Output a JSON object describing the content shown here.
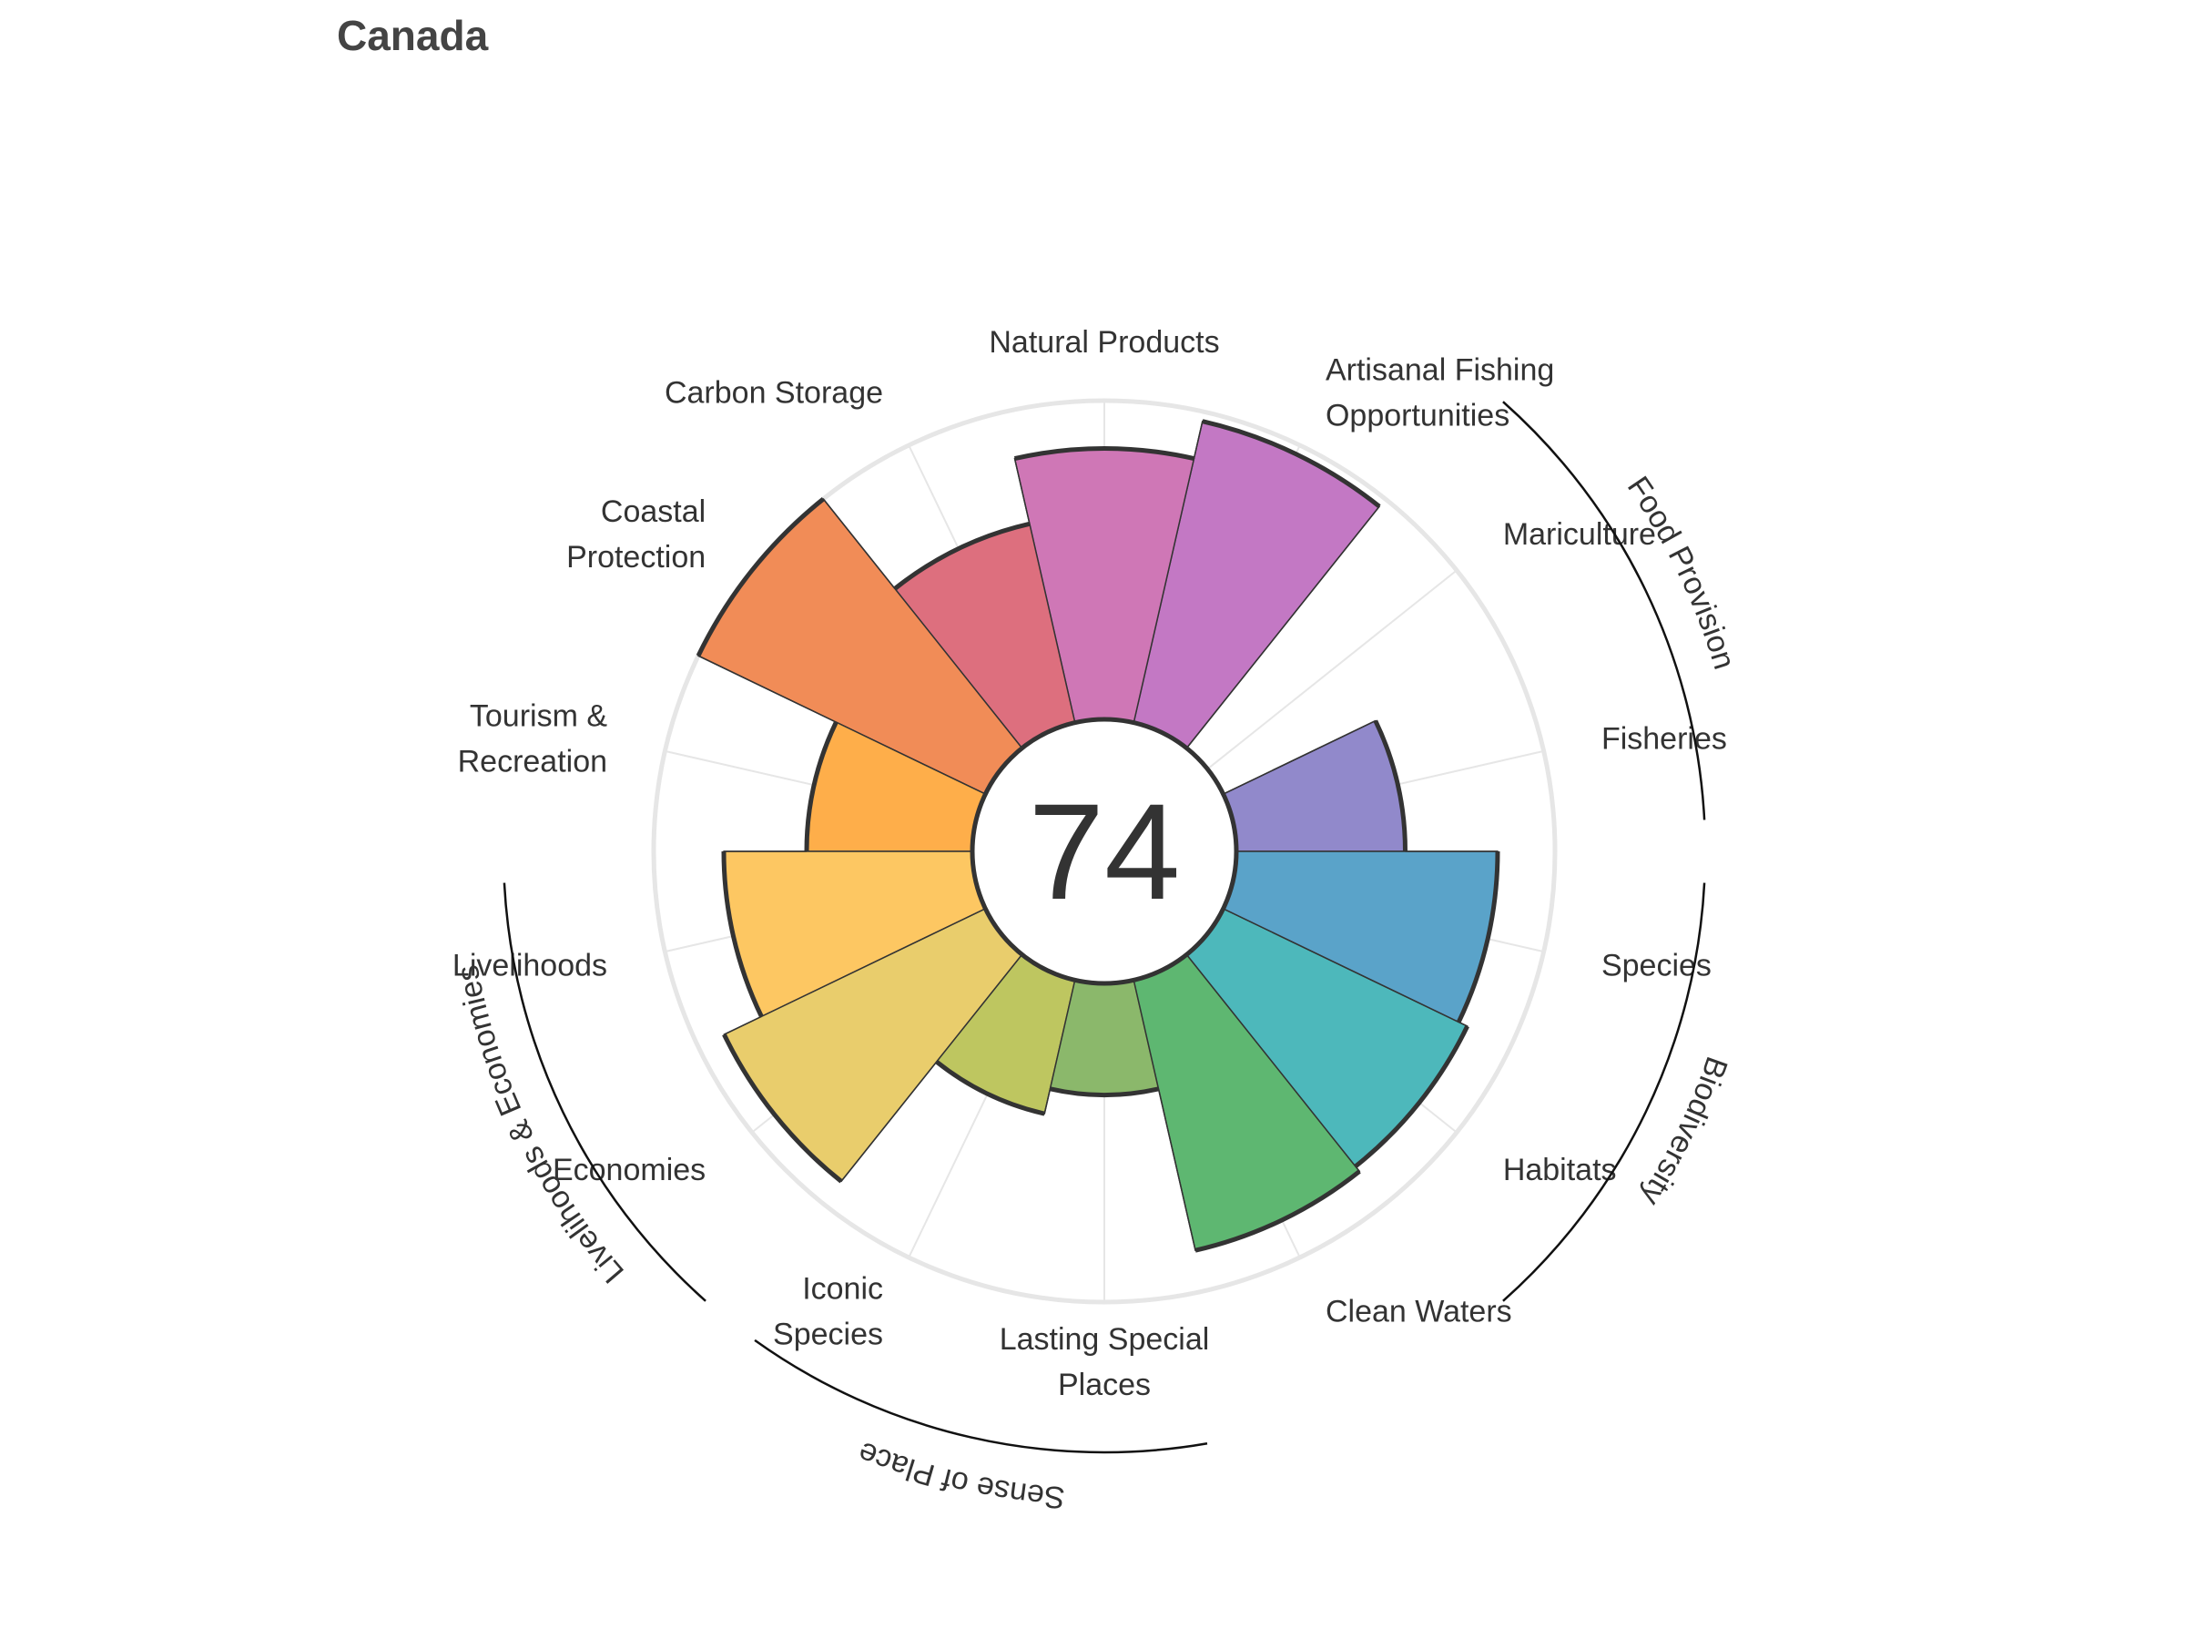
{
  "title": "Canada",
  "chart_data": {
    "type": "bar",
    "subtype": "polar-flower",
    "title": "Canada",
    "center_value": "74",
    "rlim": [
      0,
      100
    ],
    "grid": true,
    "categories": [
      "Fisheries",
      "Mariculture",
      "Artisanal Fishing Opportunities",
      "Natural Products",
      "Carbon Storage",
      "Coastal Protection",
      "Tourism & Recreation",
      "Livelihoods",
      "Economies",
      "Iconic Species",
      "Lasting Special Places",
      "Clean Waters",
      "Habitats",
      "Species"
    ],
    "label_lines": [
      [
        "Fisheries"
      ],
      [
        "Mariculture"
      ],
      [
        "Artisanal Fishing",
        "Opportunities"
      ],
      [
        "Natural Products"
      ],
      [
        "Carbon Storage"
      ],
      [
        "Coastal",
        "Protection"
      ],
      [
        "Tourism &",
        "Recreation"
      ],
      [
        "Livelihoods"
      ],
      [
        "Economies"
      ],
      [
        "Iconic",
        "Species"
      ],
      [
        "Lasting Special",
        "Places"
      ],
      [
        "Clean Waters"
      ],
      [
        "Habitats"
      ],
      [
        "Species"
      ]
    ],
    "values": [
      53,
      0,
      97,
      85,
      64,
      100,
      52,
      78,
      91,
      43,
      35,
      87,
      85,
      82
    ],
    "weights": [
      1,
      1,
      1,
      1,
      1,
      1,
      1,
      1,
      1,
      1,
      1,
      1,
      1,
      1
    ],
    "colors": [
      "#9189CB",
      "#B57FCD",
      "#C378C4",
      "#CF77B6",
      "#DD6F7E",
      "#F18C57",
      "#FEAE4A",
      "#FDC762",
      "#E9CD6C",
      "#BEC660",
      "#8BB86B",
      "#5EB771",
      "#4DB8BB",
      "#5AA3C9"
    ],
    "groups": [
      {
        "name": "Food Provision",
        "categories": [
          "Fisheries",
          "Mariculture"
        ]
      },
      {
        "name": "Biodiversity",
        "categories": [
          "Habitats",
          "Species"
        ]
      },
      {
        "name": "Sense of Place",
        "categories": [
          "Iconic Species",
          "Lasting Special Places"
        ]
      },
      {
        "name": "Livelihoods & Economies",
        "categories": [
          "Livelihoods",
          "Economies"
        ]
      }
    ]
  }
}
